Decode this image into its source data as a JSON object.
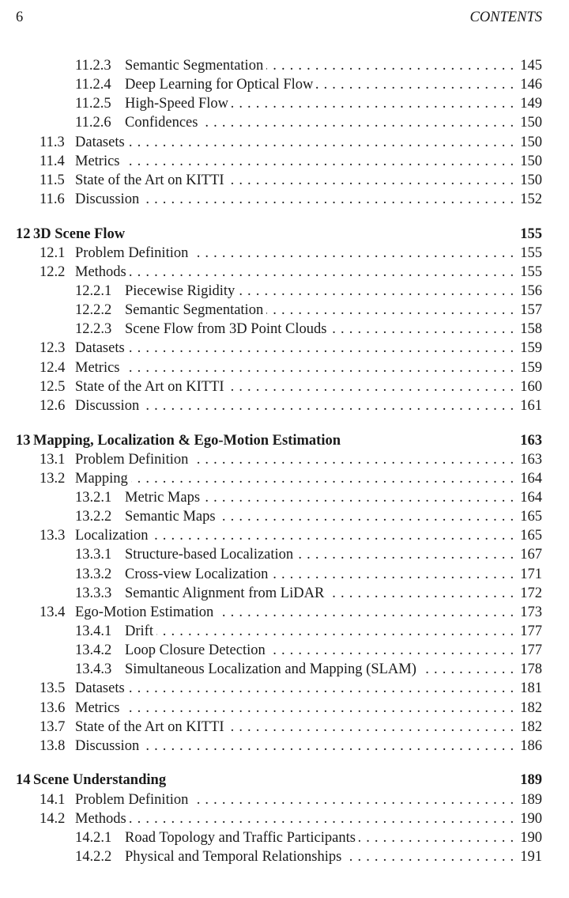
{
  "header": {
    "page_number": "6",
    "running_title": "CONTENTS"
  },
  "entries": [
    {
      "level": 2,
      "num": "11.2.3",
      "title": "Semantic Segmentation",
      "page": "145"
    },
    {
      "level": 2,
      "num": "11.2.4",
      "title": "Deep Learning for Optical Flow",
      "page": "146"
    },
    {
      "level": 2,
      "num": "11.2.5",
      "title": "High-Speed Flow",
      "page": "149"
    },
    {
      "level": 2,
      "num": "11.2.6",
      "title": "Confidences",
      "page": "150"
    },
    {
      "level": 1,
      "num": "11.3",
      "title": "Datasets",
      "page": "150"
    },
    {
      "level": 1,
      "num": "11.4",
      "title": "Metrics",
      "page": "150"
    },
    {
      "level": 1,
      "num": "11.5",
      "title": "State of the Art on KITTI",
      "page": "150"
    },
    {
      "level": 1,
      "num": "11.6",
      "title": "Discussion",
      "page": "152"
    },
    {
      "level": 0,
      "num": "12",
      "title": "3D Scene Flow",
      "page": "155"
    },
    {
      "level": 1,
      "num": "12.1",
      "title": "Problem Definition",
      "page": "155"
    },
    {
      "level": 1,
      "num": "12.2",
      "title": "Methods",
      "page": "155"
    },
    {
      "level": 2,
      "num": "12.2.1",
      "title": "Piecewise Rigidity",
      "page": "156"
    },
    {
      "level": 2,
      "num": "12.2.2",
      "title": "Semantic Segmentation",
      "page": "157"
    },
    {
      "level": 2,
      "num": "12.2.3",
      "title": "Scene Flow from 3D Point Clouds",
      "page": "158"
    },
    {
      "level": 1,
      "num": "12.3",
      "title": "Datasets",
      "page": "159"
    },
    {
      "level": 1,
      "num": "12.4",
      "title": "Metrics",
      "page": "159"
    },
    {
      "level": 1,
      "num": "12.5",
      "title": "State of the Art on KITTI",
      "page": "160"
    },
    {
      "level": 1,
      "num": "12.6",
      "title": "Discussion",
      "page": "161"
    },
    {
      "level": 0,
      "num": "13",
      "title": "Mapping, Localization & Ego-Motion Estimation",
      "page": "163"
    },
    {
      "level": 1,
      "num": "13.1",
      "title": "Problem Definition",
      "page": "163"
    },
    {
      "level": 1,
      "num": "13.2",
      "title": "Mapping",
      "page": "164"
    },
    {
      "level": 2,
      "num": "13.2.1",
      "title": "Metric Maps",
      "page": "164"
    },
    {
      "level": 2,
      "num": "13.2.2",
      "title": "Semantic Maps",
      "page": "165"
    },
    {
      "level": 1,
      "num": "13.3",
      "title": "Localization",
      "page": "165"
    },
    {
      "level": 2,
      "num": "13.3.1",
      "title": "Structure-based Localization",
      "page": "167"
    },
    {
      "level": 2,
      "num": "13.3.2",
      "title": "Cross-view Localization",
      "page": "171"
    },
    {
      "level": 2,
      "num": "13.3.3",
      "title": "Semantic Alignment from LiDAR",
      "page": "172"
    },
    {
      "level": 1,
      "num": "13.4",
      "title": "Ego-Motion Estimation",
      "page": "173"
    },
    {
      "level": 2,
      "num": "13.4.1",
      "title": "Drift",
      "page": "177"
    },
    {
      "level": 2,
      "num": "13.4.2",
      "title": "Loop Closure Detection",
      "page": "177"
    },
    {
      "level": 2,
      "num": "13.4.3",
      "title": "Simultaneous Localization and Mapping (SLAM)",
      "page": "178"
    },
    {
      "level": 1,
      "num": "13.5",
      "title": "Datasets",
      "page": "181"
    },
    {
      "level": 1,
      "num": "13.6",
      "title": "Metrics",
      "page": "182"
    },
    {
      "level": 1,
      "num": "13.7",
      "title": "State of the Art on KITTI",
      "page": "182"
    },
    {
      "level": 1,
      "num": "13.8",
      "title": "Discussion",
      "page": "186"
    },
    {
      "level": 0,
      "num": "14",
      "title": "Scene Understanding",
      "page": "189"
    },
    {
      "level": 1,
      "num": "14.1",
      "title": "Problem Definition",
      "page": "189"
    },
    {
      "level": 1,
      "num": "14.2",
      "title": "Methods",
      "page": "190"
    },
    {
      "level": 2,
      "num": "14.2.1",
      "title": "Road Topology and Traffic Participants",
      "page": "190"
    },
    {
      "level": 2,
      "num": "14.2.2",
      "title": "Physical and Temporal Relationships",
      "page": "191"
    }
  ]
}
